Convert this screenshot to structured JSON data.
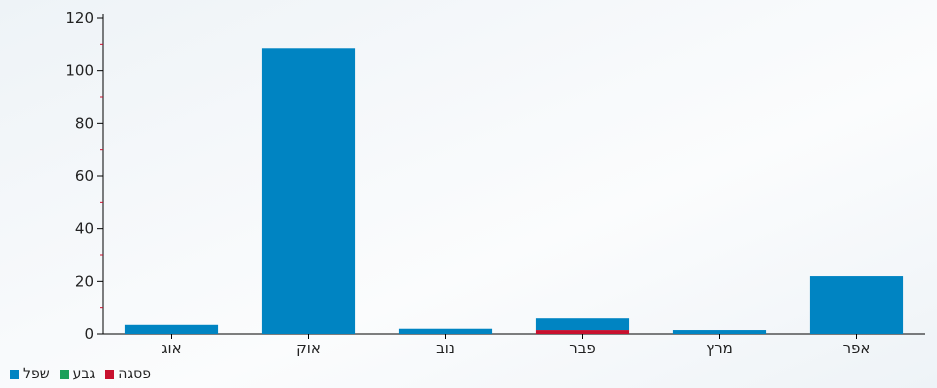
{
  "chart_data": {
    "type": "bar",
    "stacked": true,
    "categories": [
      "אוג",
      "אוק",
      "נוב",
      "פבר",
      "מרץ",
      "אפר"
    ],
    "series": [
      {
        "name": "פסגה",
        "color": "#c8102e",
        "values": [
          0,
          0,
          0,
          1.5,
          0,
          0
        ]
      },
      {
        "name": "גבע",
        "color": "#1aa05a",
        "values": [
          0,
          0,
          0,
          0,
          0,
          0
        ]
      },
      {
        "name": "שפל",
        "color": "#0084c2",
        "values": [
          3.5,
          108.5,
          2,
          4.5,
          1.5,
          22
        ]
      }
    ],
    "legend_order": [
      "שפל",
      "גבע",
      "פסגה"
    ],
    "ylim": [
      0,
      120
    ],
    "yticks": [
      0,
      20,
      40,
      60,
      80,
      100,
      120
    ],
    "legend_position": "bottom-left",
    "grid": false
  }
}
